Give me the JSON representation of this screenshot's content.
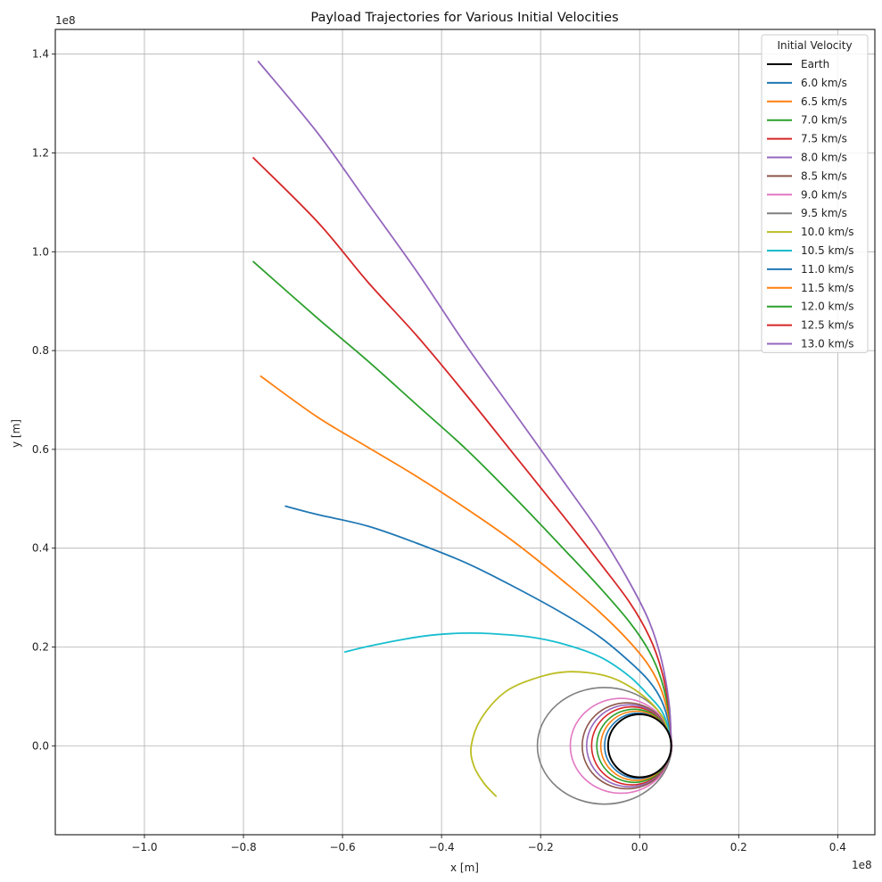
{
  "chart_data": {
    "type": "line",
    "title": "Payload Trajectories for Various Initial Velocities",
    "xlabel": "x [m]",
    "ylabel": "y [m]",
    "x_offset_label": "1e8",
    "y_offset_label": "1e8",
    "xlim": [
      -1.18,
      0.475
    ],
    "ylim": [
      -0.18,
      1.45
    ],
    "xticks": [
      -1.0,
      -0.8,
      -0.6,
      -0.4,
      -0.2,
      0.0,
      0.2,
      0.4
    ],
    "xtick_labels": [
      "−1.0",
      "−0.8",
      "−0.6",
      "−0.4",
      "−0.2",
      "0.0",
      "0.2",
      "0.4"
    ],
    "yticks": [
      0.0,
      0.2,
      0.4,
      0.6,
      0.8,
      1.0,
      1.2,
      1.4
    ],
    "ytick_labels": [
      "0.0",
      "0.2",
      "0.4",
      "0.6",
      "0.8",
      "1.0",
      "1.2",
      "1.4"
    ],
    "grid": true,
    "legend_title": "Initial Velocity",
    "legend_position": "top-right",
    "series": [
      {
        "name": "Earth",
        "color": "#000000",
        "kind": "circle",
        "cx": 0.0,
        "cy": 0.0,
        "r": 0.0637
      },
      {
        "name": "6.0 km/s",
        "color": "#1f77b4",
        "kind": "ellipse",
        "cx": -0.0032,
        "cy": 0.0,
        "rx": 0.0675,
        "ry": 0.066
      },
      {
        "name": "6.5 km/s",
        "color": "#ff7f0e",
        "kind": "ellipse",
        "cx": -0.007,
        "cy": 0.0,
        "rx": 0.0715,
        "ry": 0.07
      },
      {
        "name": "7.0 km/s",
        "color": "#2ca02c",
        "kind": "ellipse",
        "cx": -0.011,
        "cy": 0.0,
        "rx": 0.0755,
        "ry": 0.074
      },
      {
        "name": "7.5 km/s",
        "color": "#d62728",
        "kind": "ellipse",
        "cx": -0.016,
        "cy": 0.0,
        "rx": 0.081,
        "ry": 0.079
      },
      {
        "name": "8.0 km/s",
        "color": "#9467bd",
        "kind": "ellipse",
        "cx": -0.021,
        "cy": 0.0,
        "rx": 0.086,
        "ry": 0.083
      },
      {
        "name": "8.5 km/s",
        "color": "#8c564b",
        "kind": "ellipse",
        "cx": -0.0255,
        "cy": 0.0,
        "rx": 0.0905,
        "ry": 0.087
      },
      {
        "name": "9.0 km/s",
        "color": "#e377c2",
        "kind": "ellipse",
        "cx": -0.0375,
        "cy": 0.0,
        "rx": 0.1025,
        "ry": 0.096
      },
      {
        "name": "9.5 km/s",
        "color": "#7f7f7f",
        "kind": "ellipse",
        "cx": -0.071,
        "cy": 0.0,
        "rx": 0.1355,
        "ry": 0.118
      },
      {
        "name": "10.0 km/s",
        "color": "#bcbd22",
        "kind": "path",
        "points": [
          [
            0.0637,
            0.0
          ],
          [
            0.06,
            0.025
          ],
          [
            0.045,
            0.06
          ],
          [
            0.02,
            0.09
          ],
          [
            -0.02,
            0.12
          ],
          [
            -0.07,
            0.142
          ],
          [
            -0.14,
            0.15
          ],
          [
            -0.2,
            0.14
          ],
          [
            -0.27,
            0.11
          ],
          [
            -0.32,
            0.055
          ],
          [
            -0.34,
            0.0
          ],
          [
            -0.335,
            -0.04
          ],
          [
            -0.315,
            -0.075
          ],
          [
            -0.29,
            -0.102
          ]
        ]
      },
      {
        "name": "10.5 km/s",
        "color": "#17becf",
        "kind": "path",
        "points": [
          [
            0.0637,
            0.0
          ],
          [
            0.06,
            0.03
          ],
          [
            0.045,
            0.07
          ],
          [
            0.02,
            0.1
          ],
          [
            -0.02,
            0.14
          ],
          [
            -0.08,
            0.18
          ],
          [
            -0.15,
            0.205
          ],
          [
            -0.22,
            0.22
          ],
          [
            -0.3,
            0.227
          ],
          [
            -0.36,
            0.228
          ],
          [
            -0.42,
            0.224
          ],
          [
            -0.48,
            0.215
          ],
          [
            -0.54,
            0.203
          ],
          [
            -0.595,
            0.19
          ]
        ]
      },
      {
        "name": "11.0 km/s",
        "color": "#1f77b4",
        "kind": "path",
        "points": [
          [
            0.0637,
            0.0
          ],
          [
            0.06,
            0.04
          ],
          [
            0.045,
            0.09
          ],
          [
            0.02,
            0.13
          ],
          [
            -0.02,
            0.17
          ],
          [
            -0.08,
            0.22
          ],
          [
            -0.15,
            0.265
          ],
          [
            -0.25,
            0.32
          ],
          [
            -0.35,
            0.37
          ],
          [
            -0.45,
            0.41
          ],
          [
            -0.55,
            0.445
          ],
          [
            -0.65,
            0.468
          ],
          [
            -0.715,
            0.485
          ]
        ]
      },
      {
        "name": "11.5 km/s",
        "color": "#ff7f0e",
        "kind": "path",
        "points": [
          [
            0.0637,
            0.0
          ],
          [
            0.06,
            0.05
          ],
          [
            0.045,
            0.11
          ],
          [
            0.02,
            0.16
          ],
          [
            -0.02,
            0.21
          ],
          [
            -0.08,
            0.27
          ],
          [
            -0.15,
            0.33
          ],
          [
            -0.25,
            0.41
          ],
          [
            -0.35,
            0.48
          ],
          [
            -0.45,
            0.545
          ],
          [
            -0.55,
            0.605
          ],
          [
            -0.65,
            0.665
          ],
          [
            -0.765,
            0.748
          ]
        ]
      },
      {
        "name": "12.0 km/s",
        "color": "#2ca02c",
        "kind": "path",
        "points": [
          [
            0.0637,
            0.0
          ],
          [
            0.06,
            0.06
          ],
          [
            0.045,
            0.13
          ],
          [
            0.02,
            0.19
          ],
          [
            -0.02,
            0.25
          ],
          [
            -0.08,
            0.32
          ],
          [
            -0.15,
            0.395
          ],
          [
            -0.25,
            0.5
          ],
          [
            -0.35,
            0.6
          ],
          [
            -0.45,
            0.69
          ],
          [
            -0.55,
            0.78
          ],
          [
            -0.65,
            0.865
          ],
          [
            -0.78,
            0.98
          ]
        ]
      },
      {
        "name": "12.5 km/s",
        "color": "#d62728",
        "kind": "path",
        "points": [
          [
            0.0637,
            0.0
          ],
          [
            0.06,
            0.07
          ],
          [
            0.045,
            0.15
          ],
          [
            0.02,
            0.22
          ],
          [
            -0.02,
            0.29
          ],
          [
            -0.08,
            0.37
          ],
          [
            -0.15,
            0.46
          ],
          [
            -0.25,
            0.585
          ],
          [
            -0.35,
            0.71
          ],
          [
            -0.45,
            0.83
          ],
          [
            -0.55,
            0.94
          ],
          [
            -0.65,
            1.06
          ],
          [
            -0.78,
            1.19
          ]
        ]
      },
      {
        "name": "13.0 km/s",
        "color": "#9467bd",
        "kind": "path",
        "points": [
          [
            0.0637,
            0.0
          ],
          [
            0.06,
            0.08
          ],
          [
            0.045,
            0.17
          ],
          [
            0.02,
            0.25
          ],
          [
            -0.02,
            0.33
          ],
          [
            -0.08,
            0.43
          ],
          [
            -0.15,
            0.53
          ],
          [
            -0.25,
            0.67
          ],
          [
            -0.35,
            0.81
          ],
          [
            -0.45,
            0.96
          ],
          [
            -0.55,
            1.1
          ],
          [
            -0.65,
            1.24
          ],
          [
            -0.77,
            1.385
          ]
        ]
      }
    ]
  }
}
